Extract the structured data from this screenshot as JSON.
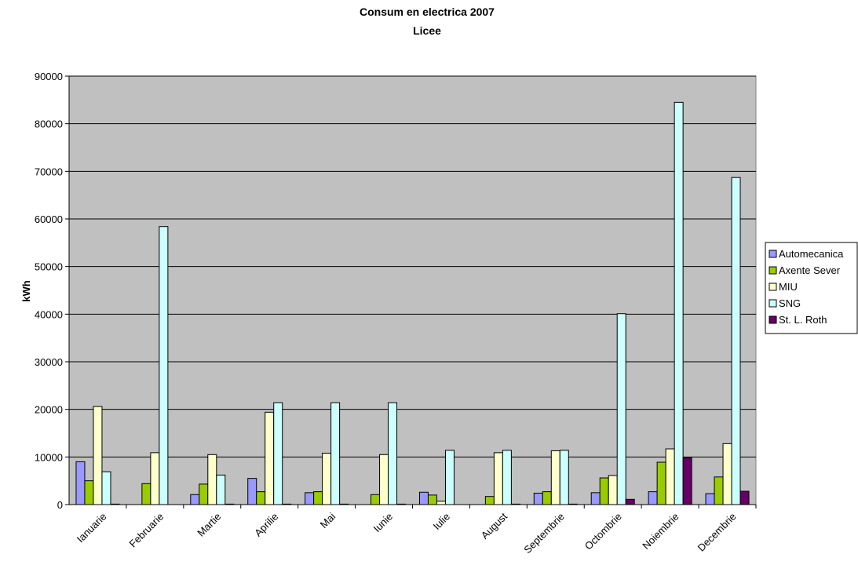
{
  "chart_data": {
    "type": "bar",
    "title": "Consum en electrica 2007",
    "subtitle": "Licee",
    "ylabel": "kWh",
    "xlabel": "",
    "ylim": [
      0,
      90000
    ],
    "yticks": [
      "0",
      "10000",
      "20000",
      "30000",
      "40000",
      "50000",
      "60000",
      "70000",
      "80000",
      "90000"
    ],
    "grid": true,
    "legend_position": "right",
    "plot_background": "#c0c0c0",
    "categories": [
      "Ianuarie",
      "Februarie",
      "Martie",
      "Aprilie",
      "Mai",
      "Iunie",
      "Iulie",
      "August",
      "Septembrie",
      "Octombrie",
      "Noiembrie",
      "Decembrie"
    ],
    "series": [
      {
        "name": "Automecanica",
        "color": "#9999ff",
        "values": [
          9000,
          0,
          2100,
          5500,
          2500,
          0,
          2600,
          0,
          2400,
          2500,
          2700,
          2300
        ]
      },
      {
        "name": "Axente Sever",
        "color": "#99cc00",
        "values": [
          5000,
          4400,
          4300,
          2700,
          2700,
          2100,
          2000,
          1700,
          2700,
          5600,
          8900,
          5800
        ]
      },
      {
        "name": "MIU",
        "color": "#ffffcc",
        "values": [
          20600,
          10900,
          10500,
          19400,
          10800,
          10500,
          700,
          10900,
          11300,
          6100,
          11700,
          12800
        ]
      },
      {
        "name": "SNG",
        "color": "#ccffff",
        "values": [
          6900,
          58400,
          6200,
          21400,
          21400,
          21400,
          11400,
          11400,
          11400,
          40100,
          84500,
          68700
        ]
      },
      {
        "name": "St. L. Roth",
        "color": "#660066",
        "values": [
          100,
          0,
          100,
          100,
          100,
          100,
          0,
          100,
          100,
          1100,
          9800,
          2800
        ]
      }
    ]
  }
}
